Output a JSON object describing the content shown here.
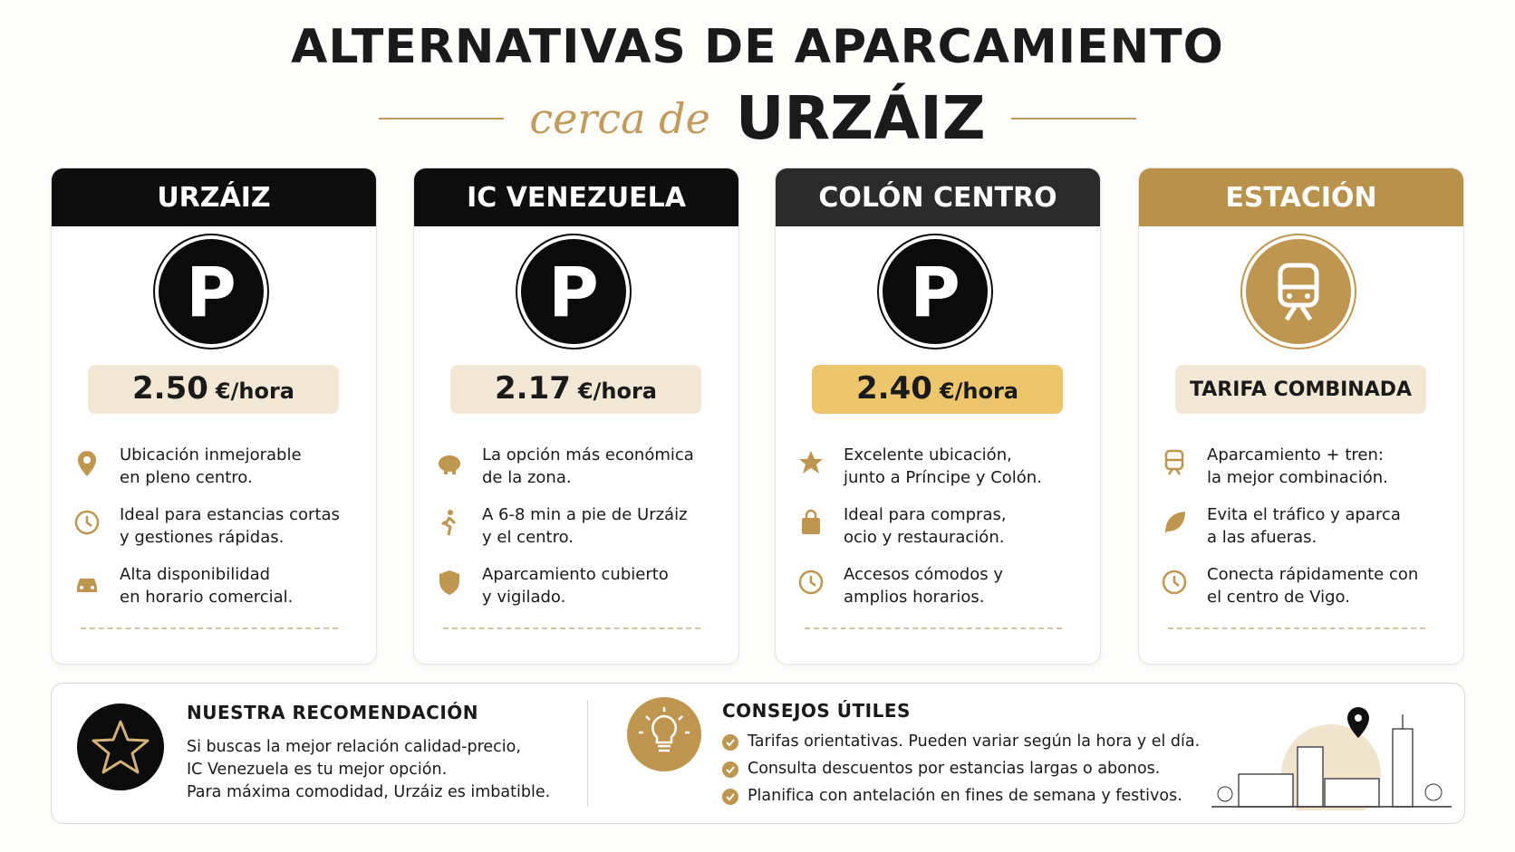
{
  "header": {
    "title": "ALTERNATIVAS DE APARCAMIENTO",
    "subtitle_script": "cerca de",
    "subtitle_bold": "URZÁIZ"
  },
  "cards": [
    {
      "name": "URZÁIZ",
      "badge": "P",
      "price": "2.50",
      "unit": "€/hora",
      "items": [
        [
          "Ubicación inmejorable",
          "en pleno centro."
        ],
        [
          "Ideal para estancias cortas",
          "y gestiones rápidas."
        ],
        [
          "Alta disponibilidad",
          "en horario comercial."
        ]
      ]
    },
    {
      "name": "IC VENEZUELA",
      "badge": "P",
      "price": "2.17",
      "unit": "€/hora",
      "items": [
        [
          "La opción más económica",
          "de la zona."
        ],
        [
          "A 6-8 min a pie de Urzáiz",
          "y el centro."
        ],
        [
          "Aparcamiento cubierto",
          "y vigilado."
        ]
      ]
    },
    {
      "name": "COLÓN CENTRO",
      "badge": "P",
      "price": "2.40",
      "unit": "€/hora",
      "items": [
        [
          "Excelente ubicación,",
          "junto a Príncipe y Colón."
        ],
        [
          "Ideal para compras,",
          "ocio y restauración."
        ],
        [
          "Accesos cómodos y",
          "amplios horarios."
        ]
      ]
    },
    {
      "name": "ESTACIÓN",
      "price": "TARIFA COMBINADA",
      "items": [
        [
          "Aparcamiento + tren:",
          "la mejor combinación."
        ],
        [
          "Evita el tráfico y aparca",
          "a las afueras."
        ],
        [
          "Conecta rápidamente con",
          "el centro de Vigo."
        ]
      ]
    }
  ],
  "recommendation": {
    "title": "NUESTRA RECOMENDACIÓN",
    "lines": [
      "Si buscas la mejor relación calidad-precio,",
      "IC Venezuela es tu mejor opción.",
      "Para máxima comodidad, Urzáiz es imbatible."
    ]
  },
  "tips": {
    "title": "CONSEJOS ÚTILES",
    "items": [
      "Tarifas orientativas. Pueden variar según la hora y el día.",
      "Consulta descuentos por estancias largas o abonos.",
      "Planifica con antelación en fines de semana y festivos."
    ]
  }
}
